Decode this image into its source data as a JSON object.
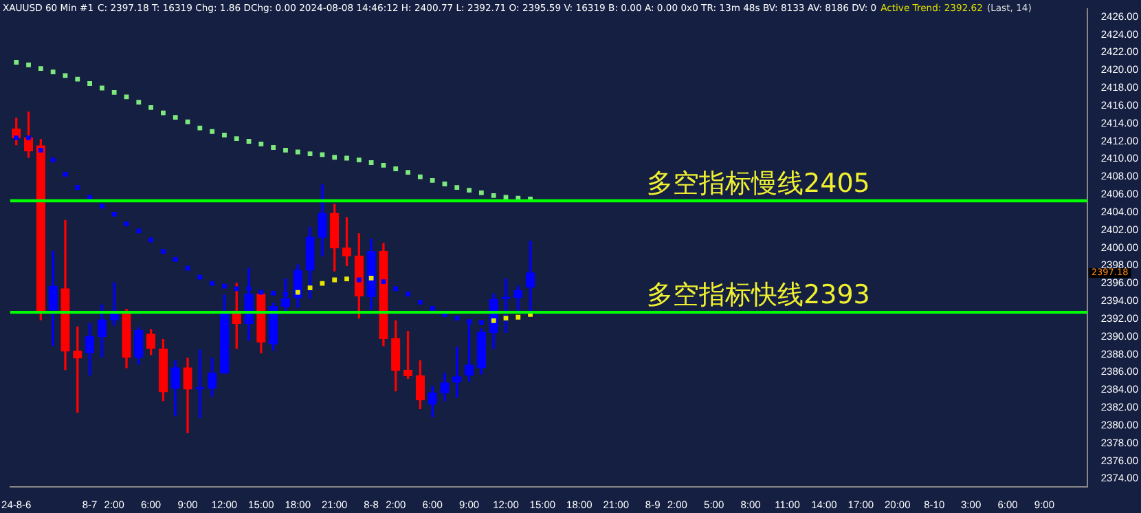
{
  "chart_data": {
    "type": "candlestick",
    "title": "XAUUSD  60 Min  #1",
    "subtitle": "C: 2397.18  T: 16319  Chg: 1.86  DChg: 0.00  2024-08-08 14:46:12  H: 2400.77  L: 2392.71  O: 2395.59  V: 16319  B: 0.00  A: 0.00  0x0  TR: 13m 48s  BV: 8133  AV: 8186  DV: 0",
    "annotations": [
      "Active Trend: 2392.62",
      "(Last, 14)",
      "2397.18"
    ],
    "categories": [
      "24-8-6",
      null,
      null,
      null,
      null,
      null,
      "8-7",
      null,
      "2:00",
      null,
      null,
      "6:00",
      null,
      null,
      "9:00",
      null,
      null,
      "12:00",
      null,
      null,
      "15:00",
      null,
      null,
      "18:00",
      null,
      null,
      "21:00",
      null,
      null,
      "8-8",
      null,
      "2:00",
      null,
      null,
      "6:00",
      null,
      null,
      "9:00",
      null,
      null,
      "12:00",
      null,
      null,
      "15:00",
      null,
      null,
      "18:00",
      null,
      null,
      "21:00",
      null,
      null,
      "8-9",
      null,
      "2:00",
      null,
      null,
      "5:00",
      null,
      null,
      "8:00",
      null,
      null,
      "11:00",
      null,
      null,
      "14:00",
      null,
      null,
      "17:00",
      null,
      null,
      "20:00",
      null,
      null,
      "8-10",
      null,
      null,
      "3:00",
      null,
      null,
      "6:00",
      null,
      null,
      "9:00",
      null,
      null,
      null
    ],
    "ohlc": [
      [
        2413.4,
        2414.6,
        2411.6,
        2412.4
      ],
      [
        2412.4,
        2415.3,
        2410.2,
        2410.9
      ],
      [
        2411.5,
        2412.2,
        2391.9,
        2392.9
      ],
      [
        2393.0,
        2399.6,
        2389.0,
        2395.7
      ],
      [
        2395.4,
        2403.1,
        2386.3,
        2388.4
      ],
      [
        2388.4,
        2391.1,
        2381.5,
        2387.6
      ],
      [
        2388.2,
        2391.5,
        2385.7,
        2390.0
      ],
      [
        2390.0,
        2393.6,
        2387.7,
        2391.9
      ],
      [
        2391.9,
        2396.1,
        2391.3,
        2392.6
      ],
      [
        2392.8,
        2393.1,
        2386.5,
        2387.7
      ],
      [
        2387.7,
        2391.0,
        2386.9,
        2390.7
      ],
      [
        2390.3,
        2390.8,
        2388.0,
        2388.7
      ],
      [
        2388.6,
        2389.7,
        2382.8,
        2383.8
      ],
      [
        2384.2,
        2387.3,
        2381.1,
        2386.5
      ],
      [
        2386.5,
        2387.6,
        2379.2,
        2384.1
      ],
      [
        2384.1,
        2388.5,
        2380.9,
        2384.2
      ],
      [
        2384.2,
        2387.6,
        2383.3,
        2385.9
      ],
      [
        2385.9,
        2394.7,
        2385.9,
        2392.8
      ],
      [
        2392.8,
        2396.0,
        2388.7,
        2391.5
      ],
      [
        2391.5,
        2397.7,
        2389.6,
        2394.8
      ],
      [
        2394.8,
        2395.0,
        2388.2,
        2389.4
      ],
      [
        2389.2,
        2393.8,
        2388.5,
        2393.4
      ],
      [
        2393.4,
        2396.5,
        2392.8,
        2394.3
      ],
      [
        2394.4,
        2398.1,
        2393.3,
        2397.5
      ],
      [
        2397.5,
        2402.3,
        2394.3,
        2401.2
      ],
      [
        2401.2,
        2407.1,
        2399.1,
        2403.9
      ],
      [
        2403.9,
        2404.9,
        2397.4,
        2400.0
      ],
      [
        2400.0,
        2403.4,
        2398.0,
        2399.1
      ],
      [
        2399.1,
        2401.6,
        2392.1,
        2394.6
      ],
      [
        2394.5,
        2401.0,
        2393.1,
        2399.6
      ],
      [
        2399.6,
        2400.5,
        2389.0,
        2389.8
      ],
      [
        2389.8,
        2391.8,
        2383.9,
        2386.2
      ],
      [
        2386.2,
        2390.6,
        2385.3,
        2385.6
      ],
      [
        2385.6,
        2387.3,
        2381.9,
        2382.9
      ],
      [
        2382.4,
        2384.4,
        2381.0,
        2383.7
      ],
      [
        2383.7,
        2385.9,
        2382.8,
        2384.8
      ],
      [
        2384.9,
        2388.8,
        2383.2,
        2385.5
      ],
      [
        2385.7,
        2391.8,
        2385.0,
        2386.8
      ],
      [
        2386.5,
        2390.9,
        2385.8,
        2390.5
      ],
      [
        2390.5,
        2394.8,
        2388.7,
        2394.2
      ],
      [
        2394.3,
        2396.5,
        2390.5,
        2394.4
      ],
      [
        2394.4,
        2395.7,
        2392.9,
        2395.2
      ],
      [
        2395.59,
        2400.77,
        2392.71,
        2397.18
      ],
      null,
      null,
      null,
      null,
      null,
      null,
      null,
      null,
      null,
      null,
      null,
      null,
      null,
      null,
      null,
      null,
      null,
      null,
      null,
      null,
      null,
      null,
      null,
      null,
      null,
      null,
      null,
      null,
      null,
      null,
      null,
      null,
      null,
      null,
      null,
      null,
      null,
      null,
      null,
      null,
      null,
      null,
      null,
      null,
      null
    ],
    "colors": [
      "#ff0000",
      "#ff0000",
      "#ff0000",
      "#0000ff",
      "#ff0000",
      "#ff0000",
      "#0000ff",
      "#0000ff",
      "#0000ff",
      "#ff0000",
      "#0000ff",
      "#ff0000",
      "#ff0000",
      "#0000ff",
      "#ff0000",
      "#0000ff",
      "#0000ff",
      "#0000ff",
      "#ff0000",
      "#0000ff",
      "#ff0000",
      "#0000ff",
      "#0000ff",
      "#0000ff",
      "#0000ff",
      "#0000ff",
      "#ff0000",
      "#ff0000",
      "#ff0000",
      "#0000ff",
      "#ff0000",
      "#ff0000",
      "#ff0000",
      "#ff0000",
      "#0000ff",
      "#0000ff",
      "#0000ff",
      "#0000ff",
      "#0000ff",
      "#0000ff",
      "#0000ff",
      "#0000ff",
      "#0000ff",
      null,
      null,
      null,
      null,
      null,
      null,
      null,
      null,
      null,
      null,
      null,
      null,
      null,
      null,
      null,
      null,
      null,
      null,
      null,
      null,
      null,
      null,
      null,
      null,
      null,
      null,
      null,
      null,
      null,
      null,
      null,
      null,
      null,
      null,
      null,
      null,
      null,
      null,
      null,
      null,
      null,
      null,
      null,
      null,
      null
    ],
    "series": [
      {
        "type": "scatter",
        "color": "#7ee87e",
        "values": [
          2420.9,
          2420.6,
          2420.2,
          2419.8,
          2419.4,
          2419.0,
          2418.5,
          2418.0,
          2417.5,
          2417.0,
          2416.4,
          2415.8,
          2415.2,
          2414.7,
          2414.2,
          2413.5,
          2413.1,
          2412.7,
          2412.3,
          2412.0,
          2411.7,
          2411.3,
          2411.0,
          2410.8,
          2410.6,
          2410.5,
          2410.2,
          2410.1,
          2409.9,
          2409.6,
          2409.3,
          2408.9,
          2408.5,
          2408.0,
          2407.6,
          2407.2,
          2406.8,
          2406.5,
          2406.2,
          2405.9,
          2405.7,
          2405.6,
          2405.5,
          null,
          null,
          null,
          null,
          null,
          null,
          null,
          null,
          null,
          null,
          null,
          null,
          null,
          null,
          null,
          null,
          null,
          null,
          null,
          null,
          null,
          null,
          null,
          null,
          null,
          null,
          null,
          null,
          null,
          null,
          null,
          null,
          null,
          null,
          null,
          null,
          null,
          null,
          null,
          null,
          null,
          null,
          null,
          null,
          null
        ]
      },
      {
        "type": "scatter",
        "colors": [
          "#0000ff",
          "#0000ff",
          "#0000ff",
          "#0000ff",
          "#0000ff",
          "#0000ff",
          "#0000ff",
          "#0000ff",
          "#0000ff",
          "#0000ff",
          "#0000ff",
          "#0000ff",
          "#0000ff",
          "#0000ff",
          "#0000ff",
          "#0000ff",
          "#0000ff",
          "#0000ff",
          "#0000ff",
          "#0000ff",
          "#0000ff",
          "#0000ff",
          "#0000ff",
          "#e6e600",
          "#e6e600",
          "#e6e600",
          "#e6e600",
          "#e6e600",
          "#0000ff",
          "#e6e600",
          "#0000ff",
          "#0000ff",
          "#0000ff",
          "#0000ff",
          "#0000ff",
          "#0000ff",
          "#0000ff",
          "#0000ff",
          "#0000ff",
          "#e6e600",
          "#e6e600",
          "#e6e600",
          "#e6e600",
          null,
          null,
          null,
          null,
          null,
          null,
          null,
          null,
          null,
          null,
          null,
          null,
          null,
          null,
          null,
          null,
          null,
          null,
          null,
          null,
          null,
          null,
          null,
          null,
          null,
          null,
          null,
          null,
          null,
          null,
          null,
          null,
          null,
          null,
          null,
          null,
          null,
          null,
          null,
          null,
          null,
          null,
          null,
          null,
          null
        ],
        "values": [
          2412.4,
          2412.4,
          2411.0,
          2409.9,
          2408.3,
          2406.8,
          2405.7,
          2404.7,
          2403.8,
          2402.7,
          2401.9,
          2400.9,
          2399.6,
          2398.7,
          2397.7,
          2396.7,
          2396.0,
          2395.7,
          2395.4,
          2395.4,
          2395.0,
          2394.9,
          2394.8,
          2395.0,
          2395.5,
          2396.0,
          2396.4,
          2396.5,
          2396.4,
          2396.6,
          2396.2,
          2395.4,
          2394.8,
          2393.9,
          2393.2,
          2392.5,
          2392.1,
          2391.7,
          2391.6,
          2391.8,
          2392.1,
          2392.2,
          2392.5,
          null,
          null,
          null,
          null,
          null,
          null,
          null,
          null,
          null,
          null,
          null,
          null,
          null,
          null,
          null,
          null,
          null,
          null,
          null,
          null,
          null,
          null,
          null,
          null,
          null,
          null,
          null,
          null,
          null,
          null,
          null,
          null,
          null,
          null,
          null,
          null,
          null,
          null,
          null,
          null,
          null,
          null,
          null,
          null,
          null
        ]
      }
    ],
    "marker": "square",
    "ref_lines": [
      {
        "axis": "y",
        "value": 2405.3,
        "label": "多空指标慢线2405",
        "color": "#00ff00"
      },
      {
        "axis": "y",
        "value": 2392.75,
        "label": "多空指标快线2393",
        "color": "#00ff00"
      }
    ],
    "ylim": [
      2373.1,
      2426.9
    ],
    "yticks": [
      {
        "value": 2374,
        "label": "2374.00"
      },
      {
        "value": 2376,
        "label": "2376.00"
      },
      {
        "value": 2378,
        "label": "2378.00"
      },
      {
        "value": 2380,
        "label": "2380.00"
      },
      {
        "value": 2382,
        "label": "2382.00"
      },
      {
        "value": 2384,
        "label": "2384.00"
      },
      {
        "value": 2386,
        "label": "2386.00"
      },
      {
        "value": 2388,
        "label": "2388.00"
      },
      {
        "value": 2390,
        "label": "2390.00"
      },
      {
        "value": 2392,
        "label": "2392.00"
      },
      {
        "value": 2394,
        "label": "2394.00"
      },
      {
        "value": 2396,
        "label": "2396.00"
      },
      {
        "value": 2398,
        "label": "2398.00"
      },
      {
        "value": 2400,
        "label": "2400.00"
      },
      {
        "value": 2402,
        "label": "2402.00"
      },
      {
        "value": 2404,
        "label": "2404.00"
      },
      {
        "value": 2406,
        "label": "2406.00"
      },
      {
        "value": 2408,
        "label": "2408.00"
      },
      {
        "value": 2410,
        "label": "2410.00"
      },
      {
        "value": 2412,
        "label": "2412.00"
      },
      {
        "value": 2414,
        "label": "2414.00"
      },
      {
        "value": 2416,
        "label": "2416.00"
      },
      {
        "value": 2418,
        "label": "2418.00"
      },
      {
        "value": 2420,
        "label": "2420.00"
      },
      {
        "value": 2422,
        "label": "2422.00"
      },
      {
        "value": 2424,
        "label": "2424.00"
      },
      {
        "value": 2426,
        "label": "2426.00"
      }
    ],
    "grid": false,
    "legend": false
  }
}
